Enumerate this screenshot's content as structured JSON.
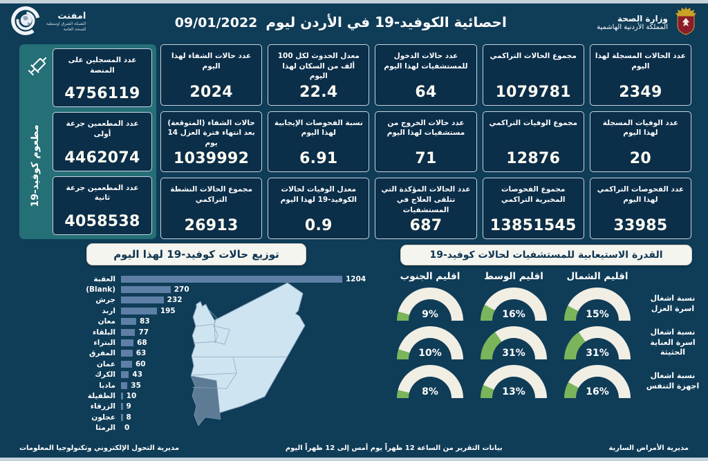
{
  "colors": {
    "background": "#0f3c57",
    "card_background": "#0b2e49",
    "vaccine_panel": "#256f77",
    "bar": "#5e80a6",
    "gauge_green": "#7ab55c",
    "gauge_track": "#f1eee4",
    "map_fill": "#cfe4f1",
    "map_highlight": "#5d7b95",
    "pill_background": "#f5f5f0",
    "number_text": "#fffdf2"
  },
  "header": {
    "title": "احصائية الكوفيد-19 في الأردن ليوم",
    "date": "09/01/2022",
    "ministry": {
      "line1": "وزارة الصحة",
      "line2": "المملكة الأردنية الهاشمية"
    },
    "network": {
      "name": "امفنت",
      "sub1": "الشبكة الشرق اوسطية",
      "sub2": "للصحة العامة"
    }
  },
  "vaccine_panel": {
    "vertical_label": "مطعوم كوفيد-19",
    "cards": [
      {
        "label": "عدد المسجلين على المنصة",
        "value": "4756119"
      },
      {
        "label": "عدد المطعمين جرعة أولى",
        "value": "4462074"
      },
      {
        "label": "عدد المطعمين جرعة ثانية",
        "value": "4058538"
      }
    ]
  },
  "stats": [
    {
      "label": "عدد الحالات المسجلة لهذا اليوم",
      "value": "2349"
    },
    {
      "label": "مجموع الحالات التراكمي",
      "value": "1079781"
    },
    {
      "label": "عدد حالات الدخول للمستشفيات لهذا اليوم",
      "value": "64"
    },
    {
      "label": "معدل الحدوث لكل 100 ألف من السكان لهذا اليوم",
      "value": "22.4"
    },
    {
      "label": "عدد حالات الشفاء لهذا اليوم",
      "value": "2024"
    },
    {
      "label": "عدد الوفيات المسجلة لهذا اليوم",
      "value": "20"
    },
    {
      "label": "مجموع الوفيات التراكمي",
      "value": "12876"
    },
    {
      "label": "عدد حالات الخروج من مستشفيات لهذا اليوم",
      "value": "71"
    },
    {
      "label": "نسبة الفحوصات الإيجابية لهذا اليوم",
      "value": "6.91"
    },
    {
      "label": "حالات الشفاء (المتوقعة) بعد انتهاء فترة العزل 14 يوم",
      "value": "1039992"
    },
    {
      "label": "عدد الفحوصات التراكمي لهذا اليوم",
      "value": "33985"
    },
    {
      "label": "مجموع الفحوصات المخبرية التراكمي",
      "value": "13851545"
    },
    {
      "label": "عدد الحالات المؤكدة التي تتلقى العلاج في المستشفيات",
      "value": "687"
    },
    {
      "label": "معدل الوفيات لحالات الكوفيد-19 لهذا اليوم",
      "value": "0.9"
    },
    {
      "label": "مجموع الحالات النشطة التراكمي",
      "value": "26913"
    }
  ],
  "chart_data": [
    {
      "type": "bar",
      "orientation": "horizontal",
      "title": "توزيع حالات كوفيد-19 لهذا اليوم",
      "categories": [
        "العقبة",
        "(Blank)",
        "جرش",
        "اربد",
        "معان",
        "البلقاء",
        "البتراء",
        "المفرق",
        "عمان",
        "الكرك",
        "مادبا",
        "الطفيلة",
        "الزرقاء",
        "عجلون",
        "الرمثا"
      ],
      "values": [
        1204,
        270,
        232,
        195,
        83,
        77,
        68,
        63,
        60,
        43,
        35,
        10,
        9,
        8,
        0
      ],
      "xlim": [
        0,
        1204
      ],
      "bar_color": "#5e80a6",
      "value_labels": true
    },
    {
      "type": "gauge-grid",
      "title": "القدرة الاستيعابية للمستشفيات لحالات كوفيد-19",
      "columns": [
        "اقليم الشمال",
        "اقليم الوسط",
        "اقليم الجنوب"
      ],
      "rows": [
        {
          "label": "نسبة اشغال اسرة العزل",
          "values": [
            15,
            16,
            9
          ]
        },
        {
          "label": "نسبة اشغال اسرة العناية الحثيثة",
          "values": [
            31,
            31,
            10
          ]
        },
        {
          "label": "نسبة اشغال اجهزة التنفس",
          "values": [
            16,
            13,
            8
          ]
        }
      ],
      "unit": "%",
      "green": "#7ab55c",
      "track": "#f1eee4"
    }
  ],
  "footer": {
    "left": "مديرية التحول الإلكتروني وتكنولوجيا المعلومات",
    "center": "بيانات التقرير من الساعة 12 ظهراً يوم أمس إلى 12 ظهراً اليوم",
    "right": "مديرية الأمراض السارية"
  }
}
